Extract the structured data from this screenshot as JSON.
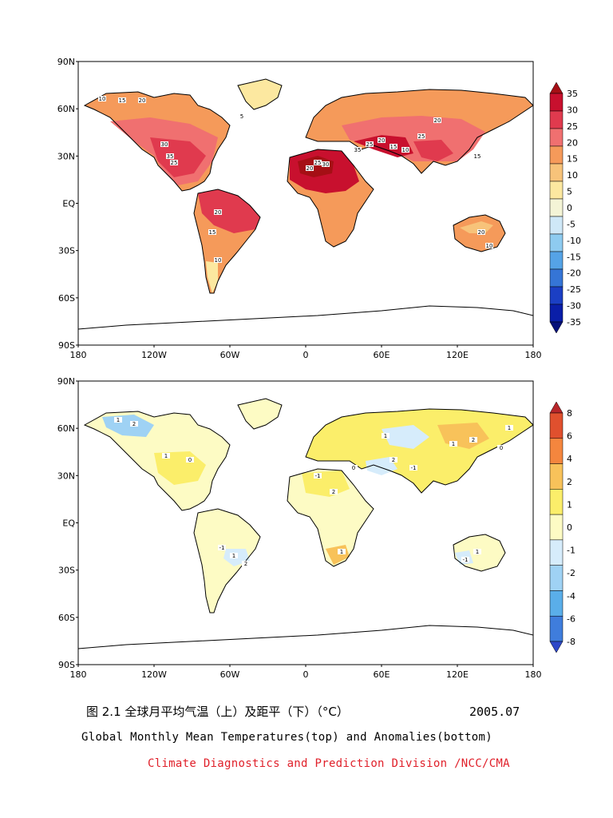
{
  "figure": {
    "caption_cn": "图 2.1  全球月平均气温（上）及距平（下）（°C）",
    "date": "2005.07",
    "caption_en": "Global Monthly Mean Temperatures(top) and Anomalies(bottom)",
    "credit": "Climate Diagnostics and Prediction Division /NCC/CMA",
    "credit_color": "#e0202a"
  },
  "axes": {
    "lon_labels": [
      "180",
      "120W",
      "60W",
      "0",
      "60E",
      "120E",
      "180"
    ],
    "lat_labels": [
      "90N",
      "60N",
      "30N",
      "EQ",
      "30S",
      "60S",
      "90S"
    ]
  },
  "maps": [
    {
      "id": "temperature",
      "legend": {
        "levels": [
          "35",
          "30",
          "25",
          "20",
          "15",
          "10",
          "5",
          "0",
          "-5",
          "-10",
          "-15",
          "-20",
          "-25",
          "-30",
          "-35"
        ],
        "colors": [
          "#a50f15",
          "#c8102e",
          "#e03a4e",
          "#f07070",
          "#f59a5a",
          "#f7c37a",
          "#fce8a0",
          "#f4f4d6",
          "#cfe8f7",
          "#8ecbf0",
          "#55a3e6",
          "#3575d6",
          "#1b3fc4",
          "#0a1ea8",
          "#05107a"
        ]
      },
      "contour_labels": [
        "10",
        "15",
        "20",
        "30",
        "35",
        "25",
        "20",
        "15",
        "10",
        "5",
        "20",
        "25",
        "30",
        "35",
        "25",
        "20",
        "15",
        "10",
        "25",
        "20",
        "15",
        "20",
        "10"
      ]
    },
    {
      "id": "anomaly",
      "legend": {
        "levels": [
          "8",
          "6",
          "4",
          "2",
          "1",
          "0",
          "-1",
          "-2",
          "-4",
          "-6",
          "-8"
        ],
        "colors": [
          "#b8262a",
          "#e0502e",
          "#f4863e",
          "#f8c25a",
          "#fbee6a",
          "#fdfbc4",
          "#d6ecfb",
          "#9fd2f4",
          "#5aaee9",
          "#3f7ddc",
          "#2e48c8"
        ]
      },
      "contour_labels": [
        "1",
        "2",
        "1",
        "0",
        "-1",
        "1",
        "2",
        "-1",
        "2",
        "1",
        "0",
        "1",
        "2",
        "-1",
        "1",
        "2",
        "1",
        "-1",
        "0",
        "1"
      ]
    }
  ]
}
